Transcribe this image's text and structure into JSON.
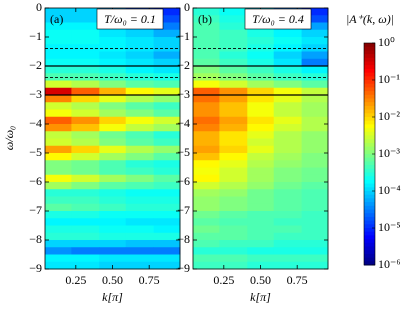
{
  "chart_data": [
    {
      "type": "heatmap",
      "panel_label": "(a)",
      "title": "T/ω₀ = 0.1",
      "ylabel": "ω/ω₀",
      "xlabel": "k[π]",
      "xlim": [
        0.04,
        0.96
      ],
      "ylim": [
        -9,
        0
      ],
      "xticks": [
        0.25,
        {
          "value": 0.5,
          "label": "0.50"
        },
        0.75
      ],
      "yticks": [
        0,
        {
          "value": -1,
          "label": "−1"
        },
        {
          "value": -2,
          "label": "−2"
        },
        {
          "value": -3,
          "label": "−3"
        },
        {
          "value": -4,
          "label": "−4"
        },
        {
          "value": -5,
          "label": "−5"
        },
        {
          "value": -6,
          "label": "−6"
        },
        {
          "value": -7,
          "label": "−7"
        },
        {
          "value": -8,
          "label": "−8"
        },
        {
          "value": -9,
          "label": "−9"
        }
      ],
      "hlines": [
        {
          "y": -1.4,
          "style": "dashed"
        },
        {
          "y": -2,
          "style": "solid"
        },
        {
          "y": -2.4,
          "style": "dashed"
        },
        {
          "y": -3,
          "style": "solid"
        }
      ],
      "xbins": [
        0.04,
        0.22,
        0.41,
        0.59,
        0.78,
        0.96
      ],
      "ybins": [
        0,
        -0.25,
        -0.5,
        -0.75,
        -1,
        -1.25,
        -1.5,
        -1.75,
        -2,
        -2.25,
        -2.5,
        -2.75,
        -3,
        -3.25,
        -3.5,
        -3.75,
        -4,
        -4.25,
        -4.5,
        -4.75,
        -5,
        -5.25,
        -5.5,
        -5.75,
        -6,
        -6.25,
        -6.5,
        -6.75,
        -7,
        -7.25,
        -7.5,
        -7.75,
        -8,
        -8.25,
        -8.5,
        -8.75,
        -9
      ],
      "z": [
        [
          0.0001,
          0.0001,
          5e-05,
          1.6e-05,
          1e-05
        ],
        [
          0.0001,
          0.0001,
          6e-05,
          3e-05,
          1.6e-05
        ],
        [
          0.00016,
          0.00016,
          0.0001,
          6e-05,
          3e-05
        ],
        [
          0.0002,
          0.0002,
          0.00013,
          0.0001,
          6e-05
        ],
        [
          0.0002,
          0.0002,
          0.00016,
          0.00013,
          0.0001
        ],
        [
          0.00016,
          0.00016,
          0.00016,
          0.00013,
          0.0001
        ],
        [
          0.00016,
          0.00016,
          0.00013,
          0.0001,
          6e-05
        ],
        [
          0.0002,
          0.0002,
          0.00016,
          0.00013,
          0.0001
        ],
        [
          0.0003,
          0.0003,
          0.00025,
          0.00016,
          0.00013
        ],
        [
          0.0005,
          0.0005,
          0.0004,
          0.0003,
          0.00025
        ],
        [
          0.003,
          0.002,
          0.001,
          0.0006,
          0.0005
        ],
        [
          0.3,
          0.05,
          0.016,
          0.006,
          0.004
        ],
        [
          0.03,
          0.01,
          0.004,
          0.002,
          0.0013
        ],
        [
          0.003,
          0.002,
          0.001,
          0.0006,
          0.0004
        ],
        [
          0.005,
          0.003,
          0.0016,
          0.001,
          0.0006
        ],
        [
          0.05,
          0.025,
          0.01,
          0.005,
          0.003
        ],
        [
          0.025,
          0.013,
          0.005,
          0.0025,
          0.0016
        ],
        [
          0.0025,
          0.0016,
          0.0008,
          0.0005,
          0.0003
        ],
        [
          0.003,
          0.002,
          0.001,
          0.0006,
          0.0004
        ],
        [
          0.02,
          0.01,
          0.004,
          0.002,
          0.0013
        ],
        [
          0.006,
          0.003,
          0.0016,
          0.001,
          0.0006
        ],
        [
          0.001,
          0.0008,
          0.0005,
          0.0003,
          0.00025
        ],
        [
          0.001,
          0.0008,
          0.0005,
          0.0004,
          0.0003
        ],
        [
          0.005,
          0.003,
          0.0016,
          0.001,
          0.0006
        ],
        [
          0.0016,
          0.001,
          0.0006,
          0.0005,
          0.0004
        ],
        [
          0.0003,
          0.0003,
          0.00025,
          0.0002,
          0.0002
        ],
        [
          0.0004,
          0.0004,
          0.0003,
          0.00025,
          0.00025
        ],
        [
          0.0006,
          0.0005,
          0.0004,
          0.0003,
          0.0003
        ],
        [
          0.00025,
          0.00025,
          0.0002,
          0.0002,
          0.0002
        ],
        [
          0.00016,
          0.00016,
          0.00016,
          0.00013,
          0.00013
        ],
        [
          0.00025,
          0.00025,
          0.0002,
          0.0002,
          0.00016
        ],
        [
          0.0003,
          0.0003,
          0.00025,
          0.00025,
          0.00025
        ],
        [
          0.0001,
          0.0001,
          0.0001,
          8e-05,
          8e-05
        ],
        [
          4e-05,
          3e-05,
          3e-05,
          3e-05,
          3e-05
        ],
        [
          0.00016,
          0.00016,
          0.00013,
          0.00013,
          0.00013
        ],
        [
          0.00013,
          0.00013,
          0.0001,
          0.0001,
          0.0001
        ]
      ]
    },
    {
      "type": "heatmap",
      "panel_label": "(b)",
      "title": "T/ω₀ = 0.4",
      "xlabel": "k[π]",
      "xlim": [
        0.04,
        0.96
      ],
      "ylim": [
        -9,
        0
      ],
      "xticks": [
        0.25,
        {
          "value": 0.5,
          "label": "0.50"
        },
        0.75
      ],
      "yticks": [
        0,
        {
          "value": -1,
          "label": "−1"
        },
        {
          "value": -2,
          "label": "−2"
        },
        {
          "value": -3,
          "label": "−3"
        },
        {
          "value": -4,
          "label": "−4"
        },
        {
          "value": -5,
          "label": "−5"
        },
        {
          "value": -6,
          "label": "−6"
        },
        {
          "value": -7,
          "label": "−7"
        },
        {
          "value": -8,
          "label": "−8"
        },
        {
          "value": -9,
          "label": "−9"
        }
      ],
      "hlines": [
        {
          "y": -1.4,
          "style": "dashed"
        },
        {
          "y": -2,
          "style": "solid"
        },
        {
          "y": -2.4,
          "style": "dashed"
        },
        {
          "y": -3,
          "style": "solid"
        }
      ],
      "xbins": [
        0.04,
        0.22,
        0.41,
        0.59,
        0.78,
        0.96
      ],
      "ybins": [
        0,
        -0.25,
        -0.5,
        -0.75,
        -1,
        -1.25,
        -1.5,
        -1.75,
        -2,
        -2.25,
        -2.5,
        -2.75,
        -3,
        -3.25,
        -3.5,
        -3.75,
        -4,
        -4.25,
        -4.5,
        -4.75,
        -5,
        -5.25,
        -5.5,
        -5.75,
        -6,
        -6.25,
        -6.5,
        -6.75,
        -7,
        -7.25,
        -7.5,
        -7.75,
        -8,
        -8.25,
        -8.5,
        -8.75,
        -9
      ],
      "z": [
        [
          0.0003,
          0.0002,
          0.0001,
          3e-05,
          1e-05
        ],
        [
          0.0004,
          0.00025,
          0.00013,
          5e-05,
          1.6e-05
        ],
        [
          0.0005,
          0.0003,
          0.0002,
          0.0001,
          5e-05
        ],
        [
          0.0005,
          0.0004,
          0.00025,
          0.00016,
          0.0001
        ],
        [
          0.0005,
          0.0004,
          0.0003,
          0.0002,
          0.00013
        ],
        [
          0.0005,
          0.0004,
          0.00025,
          0.00016,
          0.0001
        ],
        [
          0.0005,
          0.0003,
          0.0002,
          0.0001,
          5e-05
        ],
        [
          0.0006,
          0.0004,
          0.00025,
          0.00013,
          3e-05
        ],
        [
          0.001,
          0.0006,
          0.0004,
          0.00025,
          0.00016
        ],
        [
          0.0016,
          0.001,
          0.0006,
          0.0004,
          0.0003
        ],
        [
          0.005,
          0.003,
          0.0016,
          0.001,
          0.0006
        ],
        [
          0.05,
          0.025,
          0.01,
          0.005,
          0.0025
        ],
        [
          0.04,
          0.02,
          0.008,
          0.004,
          0.002
        ],
        [
          0.025,
          0.013,
          0.005,
          0.0025,
          0.0016
        ],
        [
          0.025,
          0.013,
          0.005,
          0.0025,
          0.0016
        ],
        [
          0.04,
          0.02,
          0.008,
          0.004,
          0.002
        ],
        [
          0.03,
          0.016,
          0.006,
          0.003,
          0.002
        ],
        [
          0.016,
          0.008,
          0.004,
          0.002,
          0.0013
        ],
        [
          0.016,
          0.008,
          0.003,
          0.002,
          0.0013
        ],
        [
          0.02,
          0.01,
          0.004,
          0.002,
          0.0013
        ],
        [
          0.013,
          0.006,
          0.0025,
          0.0016,
          0.001
        ],
        [
          0.006,
          0.004,
          0.002,
          0.0013,
          0.001
        ],
        [
          0.005,
          0.003,
          0.0016,
          0.001,
          0.0008
        ],
        [
          0.006,
          0.003,
          0.0016,
          0.001,
          0.0008
        ],
        [
          0.003,
          0.002,
          0.0013,
          0.0008,
          0.0006
        ],
        [
          0.0016,
          0.0013,
          0.0008,
          0.0006,
          0.0005
        ],
        [
          0.0013,
          0.001,
          0.0008,
          0.0006,
          0.0005
        ],
        [
          0.0013,
          0.001,
          0.0008,
          0.0006,
          0.0005
        ],
        [
          0.0008,
          0.0006,
          0.0005,
          0.0005,
          0.0004
        ],
        [
          0.0006,
          0.0005,
          0.0005,
          0.0004,
          0.0004
        ],
        [
          0.0008,
          0.0006,
          0.0005,
          0.0005,
          0.0004
        ],
        [
          0.0006,
          0.0006,
          0.0005,
          0.0004,
          0.0004
        ],
        [
          0.0005,
          0.0004,
          0.0004,
          0.0003,
          0.0003
        ],
        [
          0.0003,
          0.0003,
          0.00025,
          0.00025,
          0.00025
        ],
        [
          0.0005,
          0.0005,
          0.0004,
          0.0004,
          0.0004
        ],
        [
          0.0004,
          0.0004,
          0.0003,
          0.0003,
          0.0003
        ]
      ]
    }
  ],
  "colorbar": {
    "label": "|A⁺(k, ω)|",
    "scale": "log",
    "colormap": "jet",
    "zlim": [
      1e-06,
      1
    ],
    "ticks": [
      {
        "value": 1,
        "label": "10⁰"
      },
      {
        "value": 0.1,
        "label": "10⁻¹"
      },
      {
        "value": 0.01,
        "label": "10⁻²"
      },
      {
        "value": 0.001,
        "label": "10⁻³"
      },
      {
        "value": 0.0001,
        "label": "10⁻⁴"
      },
      {
        "value": 1e-05,
        "label": "10⁻⁵"
      },
      {
        "value": 1e-06,
        "label": "10⁻⁶"
      }
    ]
  }
}
